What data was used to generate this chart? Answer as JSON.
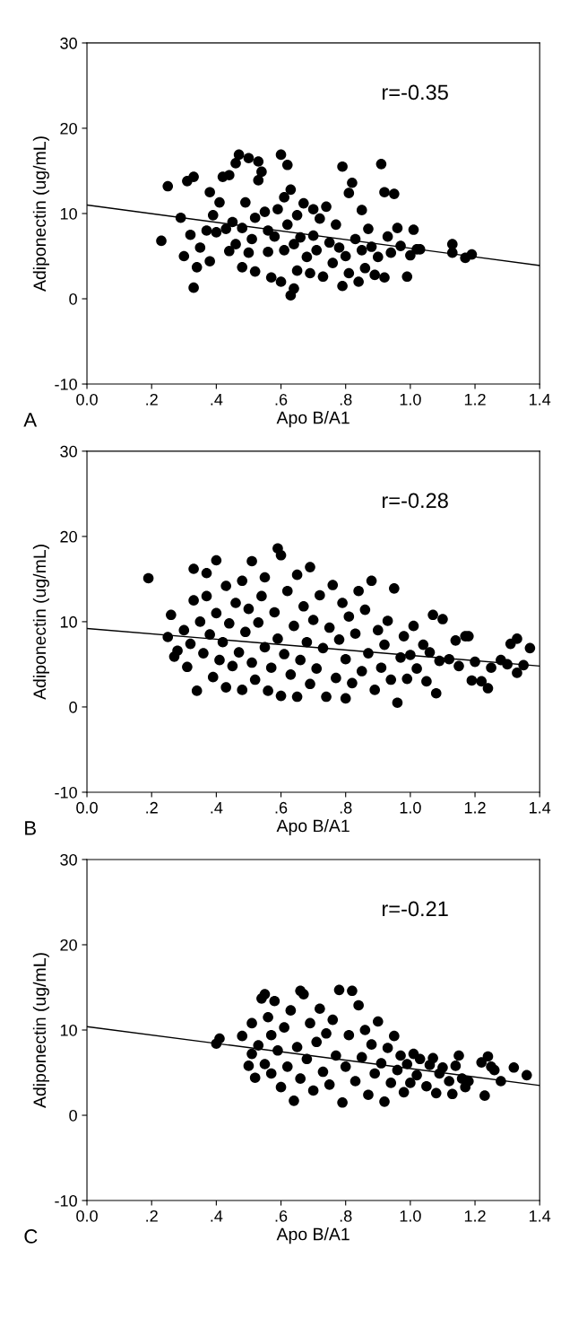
{
  "chart_data": [
    {
      "type": "scatter",
      "xlabel": "Apo B/A1",
      "ylabel": "Adiponectin (ug/mL)",
      "annotations": [
        "r=-0.35",
        "A"
      ],
      "xlim": [
        0,
        1.4
      ],
      "ylim": [
        -10,
        30
      ],
      "xticks": [
        {
          "value": 0,
          "label": "0.0"
        },
        {
          "value": 0.2,
          "label": ".2"
        },
        {
          "value": 0.4,
          "label": ".4"
        },
        {
          "value": 0.6,
          "label": ".6"
        },
        {
          "value": 0.8,
          "label": ".8"
        },
        {
          "value": 1.0,
          "label": "1.0"
        },
        {
          "value": 1.2,
          "label": "1.2"
        },
        {
          "value": 1.4,
          "label": "1.4"
        }
      ],
      "yticks": [
        -10,
        0,
        10,
        20,
        30
      ],
      "grid": false,
      "series": [
        {
          "color": "#000000",
          "marker": "circle",
          "x": [
            0.23,
            0.25,
            0.29,
            0.3,
            0.31,
            0.32,
            0.33,
            0.33,
            0.34,
            0.35,
            0.37,
            0.38,
            0.38,
            0.39,
            0.4,
            0.41,
            0.42,
            0.43,
            0.44,
            0.44,
            0.45,
            0.46,
            0.46,
            0.47,
            0.48,
            0.48,
            0.49,
            0.5,
            0.5,
            0.51,
            0.52,
            0.52,
            0.53,
            0.53,
            0.54,
            0.55,
            0.56,
            0.56,
            0.57,
            0.58,
            0.59,
            0.6,
            0.6,
            0.61,
            0.61,
            0.62,
            0.62,
            0.63,
            0.63,
            0.64,
            0.64,
            0.65,
            0.65,
            0.66,
            0.67,
            0.68,
            0.69,
            0.7,
            0.7,
            0.71,
            0.72,
            0.73,
            0.74,
            0.75,
            0.76,
            0.77,
            0.78,
            0.79,
            0.79,
            0.8,
            0.81,
            0.81,
            0.82,
            0.83,
            0.84,
            0.85,
            0.85,
            0.86,
            0.87,
            0.88,
            0.89,
            0.9,
            0.91,
            0.92,
            0.92,
            0.93,
            0.94,
            0.95,
            0.96,
            0.97,
            0.99,
            1.0,
            1.01,
            1.02,
            1.03,
            1.13,
            1.13,
            1.17,
            1.19
          ],
          "values": [
            6.8,
            13.2,
            9.5,
            5.0,
            13.8,
            7.5,
            14.3,
            1.3,
            3.7,
            6.0,
            8.0,
            4.4,
            12.5,
            9.8,
            7.8,
            11.3,
            14.3,
            8.2,
            5.6,
            14.5,
            9.0,
            6.4,
            15.9,
            16.9,
            3.7,
            8.3,
            11.3,
            16.5,
            5.4,
            7.0,
            9.5,
            3.2,
            13.9,
            16.1,
            14.9,
            10.2,
            5.5,
            8.0,
            2.5,
            7.3,
            10.5,
            16.9,
            2.0,
            11.9,
            5.7,
            15.7,
            8.7,
            12.8,
            0.4,
            1.2,
            6.4,
            3.3,
            9.8,
            7.2,
            11.2,
            4.9,
            3.0,
            10.5,
            7.4,
            5.7,
            9.4,
            2.6,
            10.8,
            6.6,
            4.2,
            8.7,
            6.0,
            15.5,
            1.5,
            5.0,
            12.4,
            3.0,
            13.6,
            7.0,
            2.0,
            5.7,
            10.4,
            3.6,
            8.2,
            6.1,
            2.8,
            4.9,
            15.8,
            12.5,
            2.5,
            7.3,
            5.4,
            12.3,
            8.3,
            6.2,
            2.6,
            5.1,
            8.1,
            5.8,
            5.8,
            6.4,
            5.4,
            4.8,
            5.2
          ]
        },
        {
          "type": "line",
          "color": "#000000",
          "marker": "none",
          "x": [
            0,
            1.4
          ],
          "values": [
            11.0,
            3.9
          ]
        }
      ]
    },
    {
      "type": "scatter",
      "xlabel": "Apo B/A1",
      "ylabel": "Adiponectin (ug/mL)",
      "annotations": [
        "r=-0.28",
        "B"
      ],
      "xlim": [
        0,
        1.4
      ],
      "ylim": [
        -10,
        30
      ],
      "xticks": [
        {
          "value": 0,
          "label": "0.0"
        },
        {
          "value": 0.2,
          "label": ".2"
        },
        {
          "value": 0.4,
          "label": ".4"
        },
        {
          "value": 0.6,
          "label": ".6"
        },
        {
          "value": 0.8,
          "label": ".8"
        },
        {
          "value": 1.0,
          "label": "1.0"
        },
        {
          "value": 1.2,
          "label": "1.2"
        },
        {
          "value": 1.4,
          "label": "1.4"
        }
      ],
      "yticks": [
        -10,
        0,
        10,
        20,
        30
      ],
      "grid": false,
      "series": [
        {
          "color": "#000000",
          "marker": "circle",
          "x": [
            0.19,
            0.25,
            0.26,
            0.27,
            0.28,
            0.3,
            0.31,
            0.32,
            0.33,
            0.33,
            0.34,
            0.35,
            0.36,
            0.37,
            0.37,
            0.38,
            0.39,
            0.4,
            0.4,
            0.41,
            0.42,
            0.43,
            0.43,
            0.44,
            0.45,
            0.46,
            0.47,
            0.48,
            0.48,
            0.49,
            0.5,
            0.51,
            0.51,
            0.52,
            0.53,
            0.54,
            0.55,
            0.55,
            0.56,
            0.57,
            0.58,
            0.59,
            0.59,
            0.6,
            0.6,
            0.61,
            0.62,
            0.63,
            0.64,
            0.65,
            0.65,
            0.66,
            0.67,
            0.68,
            0.69,
            0.69,
            0.7,
            0.71,
            0.72,
            0.73,
            0.74,
            0.75,
            0.76,
            0.77,
            0.78,
            0.79,
            0.8,
            0.8,
            0.81,
            0.82,
            0.83,
            0.84,
            0.85,
            0.86,
            0.87,
            0.88,
            0.89,
            0.9,
            0.91,
            0.92,
            0.93,
            0.94,
            0.95,
            0.96,
            0.97,
            0.98,
            0.99,
            1.0,
            1.01,
            1.02,
            1.04,
            1.05,
            1.06,
            1.07,
            1.08,
            1.09,
            1.1,
            1.12,
            1.14,
            1.15,
            1.17,
            1.18,
            1.19,
            1.2,
            1.22,
            1.24,
            1.25,
            1.28,
            1.3,
            1.31,
            1.33,
            1.33,
            1.35,
            1.37
          ],
          "values": [
            15.1,
            8.2,
            10.8,
            5.9,
            6.6,
            9.0,
            4.7,
            7.4,
            12.5,
            16.2,
            1.9,
            10.0,
            6.3,
            13.0,
            15.7,
            8.5,
            3.5,
            11.0,
            17.2,
            5.5,
            7.6,
            14.2,
            2.3,
            9.8,
            4.8,
            12.2,
            6.4,
            14.8,
            2.0,
            8.8,
            11.5,
            5.2,
            17.1,
            3.2,
            9.9,
            13.0,
            7.0,
            15.2,
            1.9,
            4.6,
            11.1,
            18.6,
            8.0,
            17.8,
            1.3,
            6.2,
            13.6,
            3.8,
            9.5,
            15.5,
            1.2,
            5.5,
            11.8,
            7.6,
            16.4,
            2.7,
            10.2,
            4.5,
            13.1,
            6.9,
            1.2,
            9.3,
            14.3,
            3.4,
            7.9,
            12.2,
            1.0,
            5.6,
            10.6,
            2.8,
            8.6,
            13.6,
            4.2,
            11.4,
            6.3,
            14.8,
            2.0,
            9.0,
            4.6,
            7.3,
            10.1,
            3.2,
            13.9,
            0.5,
            5.8,
            8.3,
            3.3,
            6.1,
            9.5,
            4.5,
            7.3,
            3.0,
            6.4,
            10.8,
            1.6,
            5.4,
            10.3,
            5.6,
            7.8,
            4.8,
            8.3,
            8.3,
            3.1,
            5.3,
            3.0,
            2.2,
            4.6,
            5.5,
            5.0,
            7.4,
            8.0,
            4.0,
            4.9,
            6.9
          ]
        },
        {
          "type": "line",
          "color": "#000000",
          "marker": "none",
          "x": [
            0,
            1.4
          ],
          "values": [
            9.2,
            4.8
          ]
        }
      ]
    },
    {
      "type": "scatter",
      "xlabel": "Apo B/A1",
      "ylabel": "Adiponectin (ug/mL)",
      "annotations": [
        "r=-0.21",
        "C"
      ],
      "xlim": [
        0,
        1.4
      ],
      "ylim": [
        -10,
        30
      ],
      "xticks": [
        {
          "value": 0,
          "label": "0.0"
        },
        {
          "value": 0.2,
          "label": ".2"
        },
        {
          "value": 0.4,
          "label": ".4"
        },
        {
          "value": 0.6,
          "label": ".6"
        },
        {
          "value": 0.8,
          "label": ".8"
        },
        {
          "value": 1.0,
          "label": "1.0"
        },
        {
          "value": 1.2,
          "label": "1.2"
        },
        {
          "value": 1.4,
          "label": "1.4"
        }
      ],
      "yticks": [
        -10,
        0,
        10,
        20,
        30
      ],
      "grid": false,
      "series": [
        {
          "color": "#000000",
          "marker": "circle",
          "x": [
            0.4,
            0.41,
            0.48,
            0.5,
            0.51,
            0.51,
            0.52,
            0.53,
            0.54,
            0.55,
            0.55,
            0.56,
            0.57,
            0.57,
            0.58,
            0.59,
            0.6,
            0.61,
            0.62,
            0.63,
            0.64,
            0.65,
            0.66,
            0.66,
            0.67,
            0.68,
            0.69,
            0.7,
            0.71,
            0.72,
            0.73,
            0.74,
            0.75,
            0.76,
            0.77,
            0.78,
            0.79,
            0.8,
            0.81,
            0.82,
            0.83,
            0.84,
            0.85,
            0.86,
            0.87,
            0.88,
            0.89,
            0.9,
            0.91,
            0.92,
            0.93,
            0.94,
            0.95,
            0.96,
            0.97,
            0.98,
            0.99,
            1.0,
            1.01,
            1.02,
            1.03,
            1.05,
            1.06,
            1.07,
            1.08,
            1.09,
            1.1,
            1.12,
            1.13,
            1.14,
            1.15,
            1.16,
            1.17,
            1.18,
            1.22,
            1.23,
            1.24,
            1.25,
            1.26,
            1.28,
            1.32,
            1.36
          ],
          "values": [
            8.4,
            9.0,
            9.3,
            5.8,
            7.2,
            10.8,
            4.4,
            8.2,
            13.7,
            14.2,
            6.0,
            11.5,
            4.9,
            9.4,
            13.4,
            7.6,
            3.3,
            10.3,
            5.7,
            12.3,
            1.7,
            8.0,
            14.6,
            4.3,
            14.2,
            6.6,
            10.8,
            2.9,
            8.6,
            12.5,
            5.1,
            9.6,
            3.6,
            11.2,
            7.0,
            14.7,
            1.5,
            5.7,
            9.4,
            14.6,
            4.0,
            12.9,
            6.8,
            10.0,
            2.4,
            8.3,
            4.9,
            11.0,
            6.1,
            1.6,
            7.9,
            3.8,
            9.3,
            5.3,
            7.0,
            2.7,
            6.0,
            3.8,
            7.2,
            4.7,
            6.6,
            3.4,
            5.9,
            6.7,
            2.6,
            4.9,
            5.6,
            4.0,
            2.5,
            5.8,
            7.0,
            4.3,
            3.3,
            4.0,
            6.2,
            2.3,
            6.9,
            5.7,
            5.3,
            4.0,
            5.6,
            4.7
          ]
        },
        {
          "type": "line",
          "color": "#000000",
          "marker": "none",
          "x": [
            0,
            1.4
          ],
          "values": [
            10.4,
            3.5
          ]
        }
      ]
    }
  ]
}
